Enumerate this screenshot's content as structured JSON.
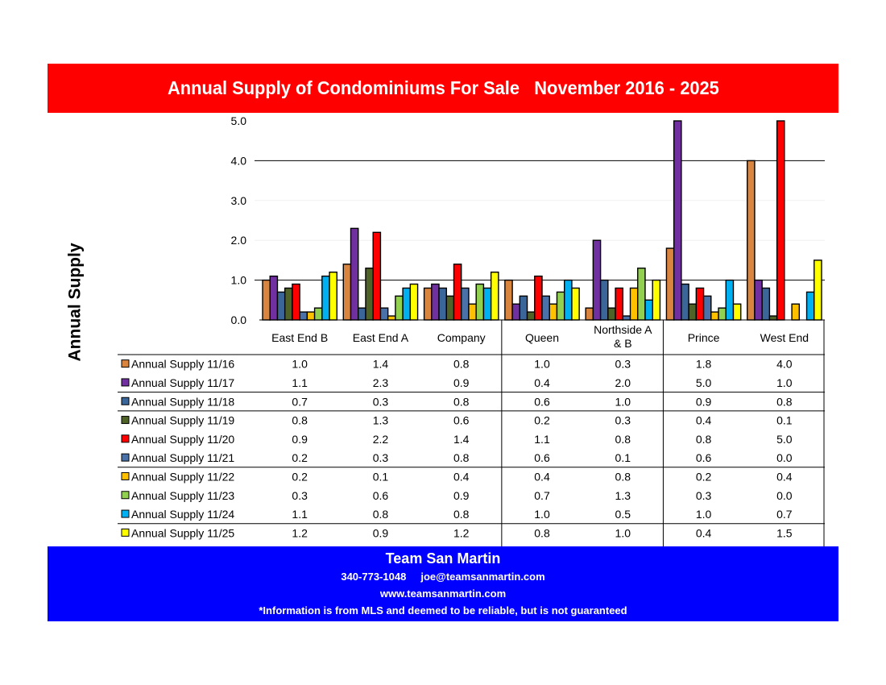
{
  "header": {
    "title": "Annual Supply of Condominiums For Sale   November 2016 - 2025"
  },
  "chart_data": {
    "type": "bar",
    "title": "Annual Supply of Condominiums For Sale   November 2016 - 2025",
    "ylabel": "Annual Supply",
    "xlabel": "",
    "ylim": [
      0,
      5
    ],
    "yticks": [
      "0.0",
      "1.0",
      "2.0",
      "3.0",
      "4.0",
      "5.0"
    ],
    "grid": true,
    "legend_placement": "data-table-left",
    "categories": [
      "East End B",
      "East End A",
      "Company",
      "Queen",
      "Northside A & B",
      "Prince",
      "West End"
    ],
    "series": [
      {
        "name": "Annual Supply 11/16",
        "color": "#d9843f",
        "values": [
          1.0,
          1.4,
          0.8,
          1.0,
          0.3,
          1.8,
          4.0
        ],
        "labels": [
          "1.0",
          "1.4",
          "0.8",
          "1.0",
          "0.3",
          "1.8",
          "4.0"
        ]
      },
      {
        "name": "Annual Supply 11/17",
        "color": "#7030a0",
        "values": [
          1.1,
          2.3,
          0.9,
          0.4,
          2.0,
          5.0,
          1.0
        ],
        "labels": [
          "1.1",
          "2.3",
          "0.9",
          "0.4",
          "2.0",
          "5.0",
          "1.0"
        ]
      },
      {
        "name": "Annual Supply 11/18",
        "color": "#3a6699",
        "values": [
          0.7,
          0.3,
          0.8,
          0.6,
          1.0,
          0.9,
          0.8
        ],
        "labels": [
          "0.7",
          "0.3",
          "0.8",
          "0.6",
          "1.0",
          "0.9",
          "0.8"
        ]
      },
      {
        "name": "Annual Supply 11/19",
        "color": "#4f6228",
        "values": [
          0.8,
          1.3,
          0.6,
          0.2,
          0.3,
          0.4,
          0.1
        ],
        "labels": [
          "0.8",
          "1.3",
          "0.6",
          "0.2",
          "0.3",
          "0.4",
          "0.1"
        ]
      },
      {
        "name": "Annual Supply 11/20",
        "color": "#ff0000",
        "values": [
          0.9,
          2.2,
          1.4,
          1.1,
          0.8,
          0.8,
          5.0
        ],
        "labels": [
          "0.9",
          "2.2",
          "1.4",
          "1.1",
          "0.8",
          "0.8",
          "5.0"
        ]
      },
      {
        "name": "Annual Supply 11/21",
        "color": "#4a72a8",
        "values": [
          0.2,
          0.3,
          0.8,
          0.6,
          0.1,
          0.6,
          0.0
        ],
        "labels": [
          "0.2",
          "0.3",
          "0.8",
          "0.6",
          "0.1",
          "0.6",
          "0.0"
        ]
      },
      {
        "name": "Annual Supply 11/22",
        "color": "#ffc000",
        "values": [
          0.2,
          0.1,
          0.4,
          0.4,
          0.8,
          0.2,
          0.4
        ],
        "labels": [
          "0.2",
          "0.1",
          "0.4",
          "0.4",
          "0.8",
          "0.2",
          "0.4"
        ]
      },
      {
        "name": "Annual Supply 11/23",
        "color": "#92d050",
        "values": [
          0.3,
          0.6,
          0.9,
          0.7,
          1.3,
          0.3,
          0.0
        ],
        "labels": [
          "0.3",
          "0.6",
          "0.9",
          "0.7",
          "1.3",
          "0.3",
          "0.0"
        ]
      },
      {
        "name": "Annual Supply 11/24",
        "color": "#00b0f0",
        "values": [
          1.1,
          0.8,
          0.8,
          1.0,
          0.5,
          1.0,
          0.7
        ],
        "labels": [
          "1.1",
          "0.8",
          "0.8",
          "1.0",
          "0.5",
          "1.0",
          "0.7"
        ]
      },
      {
        "name": "Annual Supply 11/25",
        "color": "#ffff00",
        "values": [
          1.2,
          0.9,
          1.2,
          0.8,
          1.0,
          0.4,
          1.5
        ],
        "labels": [
          "1.2",
          "0.9",
          "1.2",
          "0.8",
          "1.0",
          "0.4",
          "1.5"
        ]
      }
    ]
  },
  "footer": {
    "name": "Team San Martin",
    "phone": "340-773-1048",
    "email": "joe@teamsanmartin.com",
    "website": "www.teamsanmartin.com",
    "disclaimer": "*Information is from MLS and deemed to be reliable, but is not guaranteed"
  },
  "colors": {
    "title_bar": "#ff0000",
    "footer_bar": "#0000ff"
  }
}
